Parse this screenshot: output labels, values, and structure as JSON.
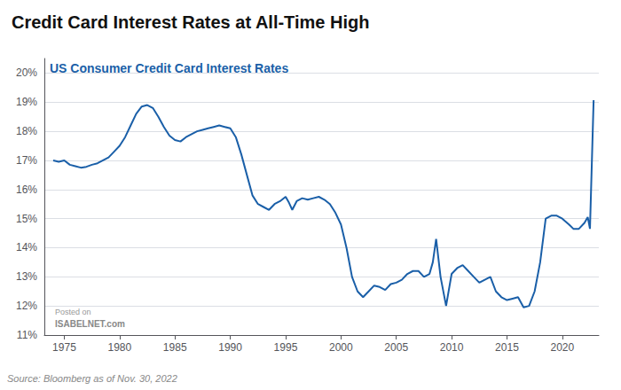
{
  "chart_data": {
    "type": "line",
    "title": "Credit Card Interest Rates at All-Time High",
    "annotations": [
      "US Consumer Credit Card Interest Rates",
      "Source: Bloomberg as of Nov. 30, 2022",
      "Posted on",
      "ISABELNET.com"
    ],
    "color": "#1a5fa8",
    "grid": true,
    "xlim": [
      1973.2,
      2023.3
    ],
    "xticks": [
      1975,
      1980,
      1985,
      1990,
      1995,
      2000,
      2005,
      2010,
      2015,
      2020
    ],
    "ylim": [
      11,
      20.5
    ],
    "yticks": [
      {
        "value": 11,
        "label": "11%"
      },
      {
        "value": 12,
        "label": "12%"
      },
      {
        "value": 13,
        "label": "13%"
      },
      {
        "value": 14,
        "label": "14%"
      },
      {
        "value": 15,
        "label": "15%"
      },
      {
        "value": 16,
        "label": "16%"
      },
      {
        "value": 17,
        "label": "17%"
      },
      {
        "value": 18,
        "label": "18%"
      },
      {
        "value": 19,
        "label": "19%"
      },
      {
        "value": 20,
        "label": "20%"
      }
    ],
    "x": [
      1974.0,
      1974.5,
      1975.0,
      1975.5,
      1976.0,
      1976.5,
      1977.0,
      1977.5,
      1978.0,
      1978.5,
      1979.0,
      1979.5,
      1980.0,
      1980.5,
      1981.0,
      1981.5,
      1982.0,
      1982.5,
      1983.0,
      1983.5,
      1984.0,
      1984.5,
      1985.0,
      1985.5,
      1986.0,
      1986.5,
      1987.0,
      1987.5,
      1988.0,
      1988.5,
      1989.0,
      1989.5,
      1990.0,
      1990.5,
      1991.0,
      1991.5,
      1992.0,
      1992.5,
      1993.0,
      1993.5,
      1994.0,
      1994.5,
      1995.0,
      1995.3,
      1995.6,
      1996.0,
      1996.5,
      1997.0,
      1997.5,
      1998.0,
      1998.5,
      1999.0,
      1999.5,
      2000.0,
      2000.5,
      2001.0,
      2001.5,
      2002.0,
      2002.5,
      2003.0,
      2003.5,
      2004.0,
      2004.5,
      2005.0,
      2005.5,
      2006.0,
      2006.5,
      2007.0,
      2007.5,
      2008.0,
      2008.3,
      2008.6,
      2009.0,
      2009.5,
      2010.0,
      2010.5,
      2011.0,
      2011.5,
      2012.0,
      2012.5,
      2013.0,
      2013.5,
      2014.0,
      2014.5,
      2015.0,
      2015.5,
      2016.0,
      2016.5,
      2017.0,
      2017.5,
      2018.0,
      2018.5,
      2019.0,
      2019.5,
      2020.0,
      2020.3,
      2020.6,
      2021.0,
      2021.5,
      2022.0,
      2022.3,
      2022.5,
      2022.83
    ],
    "values": [
      17.0,
      16.95,
      17.0,
      16.85,
      16.8,
      16.75,
      16.78,
      16.85,
      16.9,
      17.0,
      17.1,
      17.3,
      17.5,
      17.8,
      18.2,
      18.6,
      18.85,
      18.9,
      18.8,
      18.5,
      18.15,
      17.85,
      17.7,
      17.65,
      17.8,
      17.9,
      18.0,
      18.05,
      18.1,
      18.15,
      18.2,
      18.15,
      18.1,
      17.8,
      17.2,
      16.5,
      15.8,
      15.5,
      15.4,
      15.3,
      15.5,
      15.6,
      15.75,
      15.55,
      15.3,
      15.6,
      15.7,
      15.65,
      15.7,
      15.75,
      15.65,
      15.5,
      15.2,
      14.8,
      14.0,
      13.0,
      12.5,
      12.3,
      12.5,
      12.7,
      12.65,
      12.55,
      12.75,
      12.8,
      12.9,
      13.1,
      13.2,
      13.2,
      13.0,
      13.1,
      13.5,
      14.3,
      13.0,
      12.0,
      13.1,
      13.3,
      13.4,
      13.2,
      13.0,
      12.8,
      12.9,
      13.0,
      12.5,
      12.3,
      12.2,
      12.25,
      12.3,
      11.95,
      12.0,
      12.5,
      13.5,
      15.0,
      15.1,
      15.1,
      15.0,
      14.9,
      14.8,
      14.65,
      14.65,
      14.85,
      15.05,
      14.65,
      19.07
    ]
  }
}
